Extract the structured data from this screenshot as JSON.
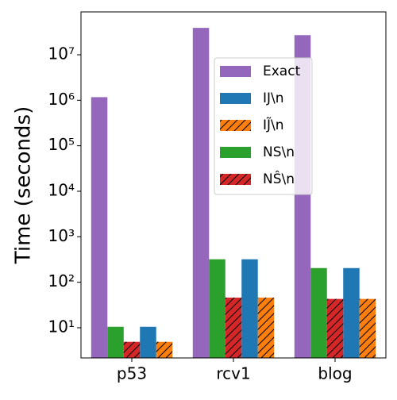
{
  "chart_data": {
    "type": "bar",
    "ylabel": "Time (seconds)",
    "log_y": true,
    "categories": [
      "p53",
      "rcv1",
      "blog"
    ],
    "series": [
      {
        "name": "Exact",
        "color": "#9467bd",
        "values": [
          1170000,
          39000000,
          27000000
        ]
      },
      {
        "name": "IJ\\n",
        "color": "#1f77b4",
        "values": [
          10.5,
          320,
          205
        ]
      },
      {
        "name": "IJ̃\\n",
        "color": "#ff7f0e",
        "hatch": "/",
        "values": [
          4.9,
          46,
          43
        ]
      },
      {
        "name": "NS\\n",
        "color": "#2ca02c",
        "values": [
          10.5,
          320,
          205
        ]
      },
      {
        "name": "NŜ\\n",
        "color": "#d62728",
        "hatch": "/",
        "values": [
          4.9,
          46,
          43
        ]
      }
    ],
    "ylim": [
      2.17,
      87500000
    ],
    "yticks": [
      {
        "value": 10,
        "label": "10¹"
      },
      {
        "value": 100,
        "label": "10²"
      },
      {
        "value": 1000,
        "label": "10³"
      },
      {
        "value": 10000,
        "label": "10⁴"
      },
      {
        "value": 100000,
        "label": "10⁵"
      },
      {
        "value": 1000000,
        "label": "10⁶"
      },
      {
        "value": 10000000,
        "label": "10⁷"
      }
    ],
    "legend": "upper center"
  }
}
